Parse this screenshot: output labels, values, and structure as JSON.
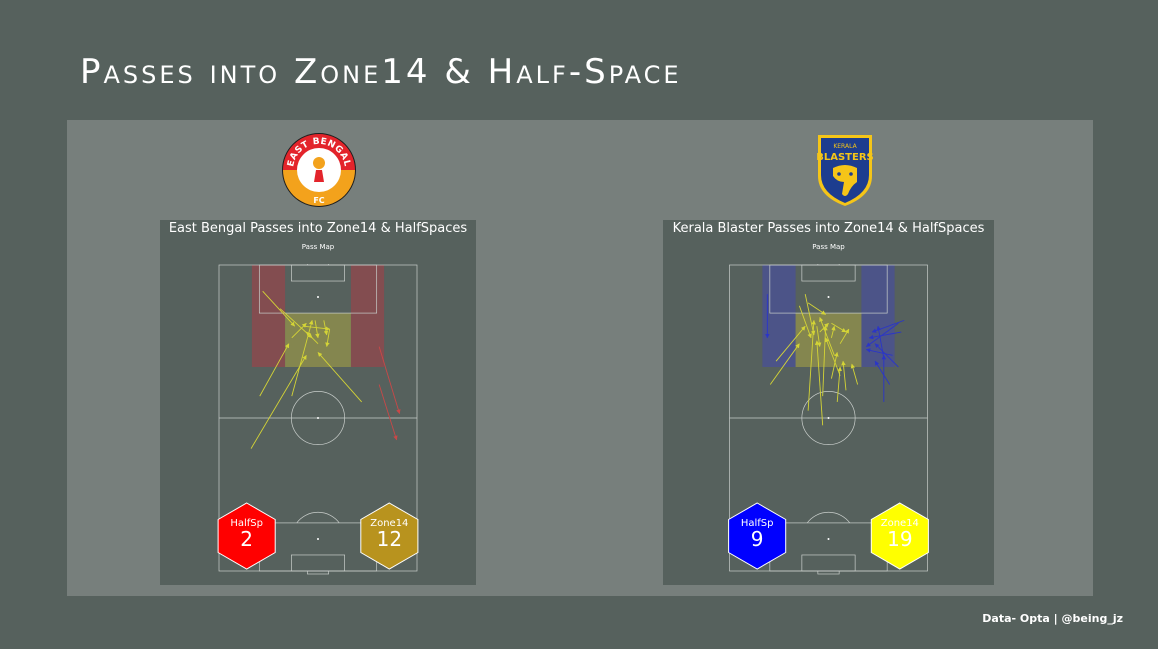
{
  "title": "Passes into Zone14 & Half-Space",
  "footer": "Data- Opta | @being_jz",
  "charts": {
    "east_bengal": {
      "title": "East Bengal Passes into Zone14 & HalfSpaces",
      "subtitle": "Pass Map",
      "halfsp_label": "HalfSp",
      "zone14_label": "Zone14",
      "halfsp_count": "2",
      "zone14_count": "12"
    },
    "kerala_blasters": {
      "title": "Kerala Blaster Passes into Zone14 & HalfSpaces",
      "subtitle": "Pass Map",
      "halfsp_label": "HalfSp",
      "zone14_label": "Zone14",
      "halfsp_count": "9",
      "zone14_count": "19"
    }
  },
  "logos": {
    "east_bengal_text": "EAST BENGAL",
    "east_bengal_fc": "FC",
    "kerala_top": "KERALA",
    "kerala_main": "BLASTERS"
  },
  "colors": {
    "background": "#56615d",
    "panel": "#777f7c",
    "eb_halfspace": "#8b4a4e",
    "eb_halfsp_hex": "#ff0000",
    "eb_zone14_hex": "#b8931e",
    "kb_halfspace": "#4a528f",
    "kb_halfsp_hex": "#0000ff",
    "kb_zone14_hex": "#ffff00",
    "zone14_fill": "#8a8b4e",
    "zone14_pass": "#d4d436",
    "eb_halfsp_pass": "#c84848",
    "kb_halfsp_pass": "#2a35c8"
  },
  "chart_data": [
    {
      "type": "pass_map",
      "pitch_length": 105,
      "pitch_width": 68,
      "zone14": {
        "x": [
          70,
          88.5
        ],
        "y": [
          22.7,
          45.3
        ]
      },
      "halfspaces": [
        {
          "x": [
            70,
            105
          ],
          "y": [
            11.3,
            22.7
          ]
        },
        {
          "x": [
            70,
            105
          ],
          "y": [
            45.3,
            56.7
          ]
        }
      ],
      "totals": {
        "halfspace": 2,
        "zone14": 12
      },
      "zone14_passes": [
        {
          "start": [
            42,
            11
          ],
          "end": [
            74,
            30
          ]
        },
        {
          "start": [
            60,
            14
          ],
          "end": [
            78,
            24
          ]
        },
        {
          "start": [
            96,
            15
          ],
          "end": [
            84,
            26
          ]
        },
        {
          "start": [
            90,
            21
          ],
          "end": [
            80,
            32
          ]
        },
        {
          "start": [
            60,
            25
          ],
          "end": [
            86,
            32
          ]
        },
        {
          "start": [
            80,
            25
          ],
          "end": [
            85,
            30
          ]
        },
        {
          "start": [
            84,
            29
          ],
          "end": [
            83,
            38
          ]
        },
        {
          "start": [
            86,
            33
          ],
          "end": [
            80,
            34
          ]
        },
        {
          "start": [
            78,
            34
          ],
          "end": [
            82,
            30
          ]
        },
        {
          "start": [
            86,
            36
          ],
          "end": [
            81,
            37
          ]
        },
        {
          "start": [
            83,
            38
          ],
          "end": [
            77,
            37
          ]
        },
        {
          "start": [
            58,
            49
          ],
          "end": [
            75,
            34
          ]
        }
      ],
      "halfspace_passes": [
        {
          "start": [
            77,
            55
          ],
          "end": [
            54,
            62
          ]
        },
        {
          "start": [
            64,
            55
          ],
          "end": [
            45,
            61
          ]
        }
      ]
    },
    {
      "type": "pass_map",
      "pitch_length": 105,
      "pitch_width": 68,
      "zone14": {
        "x": [
          70,
          88.5
        ],
        "y": [
          22.7,
          45.3
        ]
      },
      "halfspaces": [
        {
          "x": [
            70,
            105
          ],
          "y": [
            11.3,
            22.7
          ]
        },
        {
          "x": [
            70,
            105
          ],
          "y": [
            45.3,
            56.7
          ]
        }
      ],
      "totals": {
        "halfspace": 9,
        "zone14": 19
      },
      "zone14_passes": [
        {
          "start": [
            64,
            14
          ],
          "end": [
            78,
            24
          ]
        },
        {
          "start": [
            72,
            16
          ],
          "end": [
            84,
            26
          ]
        },
        {
          "start": [
            91,
            24
          ],
          "end": [
            80,
            28
          ]
        },
        {
          "start": [
            95,
            26
          ],
          "end": [
            81,
            29
          ]
        },
        {
          "start": [
            55,
            27
          ],
          "end": [
            86,
            29
          ]
        },
        {
          "start": [
            50,
            32
          ],
          "end": [
            79,
            30
          ]
        },
        {
          "start": [
            60,
            32
          ],
          "end": [
            84,
            33
          ]
        },
        {
          "start": [
            82,
            31
          ],
          "end": [
            85,
            34
          ]
        },
        {
          "start": [
            84,
            30
          ],
          "end": [
            77,
            31
          ]
        },
        {
          "start": [
            80,
            35
          ],
          "end": [
            84,
            36
          ]
        },
        {
          "start": [
            85,
            35
          ],
          "end": [
            82,
            40
          ]
        },
        {
          "start": [
            78,
            38
          ],
          "end": [
            83,
            41
          ]
        },
        {
          "start": [
            67,
            38
          ],
          "end": [
            80,
            33
          ]
        },
        {
          "start": [
            66,
            35
          ],
          "end": [
            75,
            37
          ]
        },
        {
          "start": [
            62,
            40
          ],
          "end": [
            72,
            39
          ]
        },
        {
          "start": [
            58,
            37
          ],
          "end": [
            70,
            38
          ]
        },
        {
          "start": [
            92,
            27
          ],
          "end": [
            88,
            33
          ]
        },
        {
          "start": [
            74,
            36
          ],
          "end": [
            87,
            31
          ]
        },
        {
          "start": [
            64,
            44
          ],
          "end": [
            71,
            42
          ]
        }
      ],
      "halfspace_passes": [
        {
          "start": [
            73,
            53
          ],
          "end": [
            84,
            51
          ]
        },
        {
          "start": [
            85,
            58
          ],
          "end": [
            77,
            47
          ]
        },
        {
          "start": [
            86,
            60
          ],
          "end": [
            82,
            49
          ]
        },
        {
          "start": [
            82,
            59
          ],
          "end": [
            80,
            48
          ]
        },
        {
          "start": [
            70,
            58
          ],
          "end": [
            78,
            50
          ]
        },
        {
          "start": [
            74,
            56
          ],
          "end": [
            76,
            47
          ]
        },
        {
          "start": [
            64,
            55
          ],
          "end": [
            72,
            50
          ]
        },
        {
          "start": [
            58,
            53
          ],
          "end": [
            74,
            53
          ]
        },
        {
          "start": [
            95,
            13
          ],
          "end": [
            80,
            13
          ]
        }
      ]
    }
  ]
}
